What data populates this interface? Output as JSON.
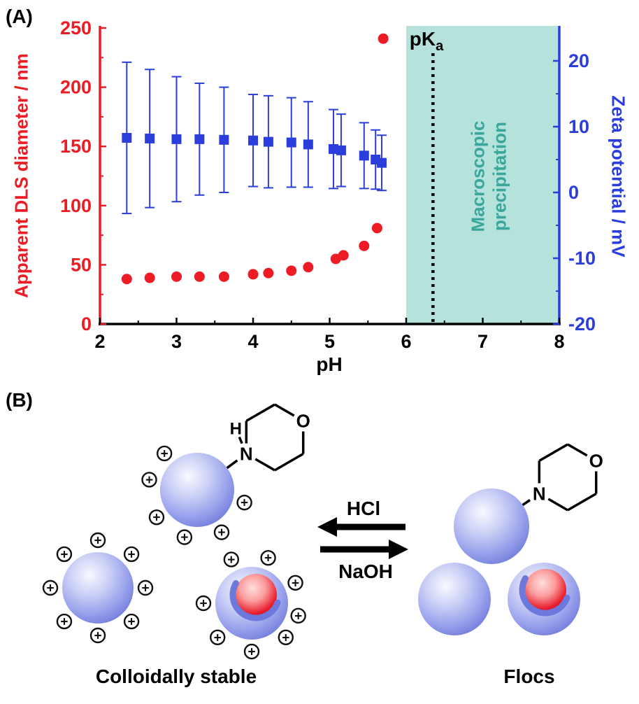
{
  "figure": {
    "panel_a_label": "(A)",
    "panel_b_label": "(B)"
  },
  "chart_data": {
    "type": "scatter",
    "title": "",
    "xlabel": "pH",
    "xlim": [
      2,
      8
    ],
    "xticks": [
      2,
      3,
      4,
      5,
      6,
      7,
      8
    ],
    "left_axis": {
      "label": "Apparent DLS diameter / nm",
      "color": "#ed1c24",
      "lim": [
        0,
        250
      ],
      "ticks": [
        0,
        50,
        100,
        150,
        200,
        250
      ]
    },
    "right_axis": {
      "label": "Zeta potential / mV",
      "color": "#2b3edb",
      "lim": [
        -20,
        25
      ],
      "ticks": [
        -20,
        -10,
        0,
        10,
        20
      ]
    },
    "grid": false,
    "legend": "none",
    "series": [
      {
        "name": "Apparent DLS diameter",
        "axis": "left",
        "marker": "circle",
        "color": "#ed1c24",
        "x": [
          2.35,
          2.65,
          3.0,
          3.3,
          3.62,
          4.0,
          4.2,
          4.5,
          4.72,
          5.08,
          5.18,
          5.45,
          5.62,
          5.7
        ],
        "y": [
          38,
          39,
          40,
          40,
          40,
          42,
          43,
          45,
          48,
          55,
          58,
          66,
          81,
          241
        ]
      },
      {
        "name": "Zeta potential",
        "axis": "right",
        "marker": "square",
        "color": "#2b3edb",
        "x": [
          2.35,
          2.65,
          3.0,
          3.3,
          3.62,
          4.0,
          4.2,
          4.5,
          4.72,
          5.05,
          5.15,
          5.45,
          5.6,
          5.68
        ],
        "y": [
          8.3,
          8.2,
          8.1,
          8.1,
          8.0,
          7.9,
          7.7,
          7.6,
          7.3,
          6.6,
          6.4,
          5.6,
          5.0,
          4.5
        ],
        "yerr": [
          11.5,
          10.5,
          9.5,
          8.5,
          8.0,
          7.0,
          7.0,
          6.8,
          6.5,
          6.0,
          5.5,
          5.0,
          4.5,
          4.2
        ]
      }
    ],
    "annotations": {
      "pka": {
        "main": "pK",
        "sub": "a",
        "x": 6.35
      },
      "region": {
        "x_start": 6,
        "x_end": 8,
        "fill": "#b5e2da",
        "label_lines": [
          "Macroscopic",
          "precipitation"
        ],
        "label_color": "#3aa79b"
      }
    }
  },
  "schematic": {
    "acid_label": "HCl",
    "base_label": "NaOH",
    "left_caption": "Colloidally stable",
    "right_caption": "Flocs",
    "charge_symbol": "+",
    "atoms": {
      "oxygen": "O",
      "nitrogen": "N",
      "hydrogen": "H"
    },
    "colors": {
      "sphere": "#7d88e4",
      "core": "#e81c2c",
      "charge_ring": "#111111"
    }
  }
}
